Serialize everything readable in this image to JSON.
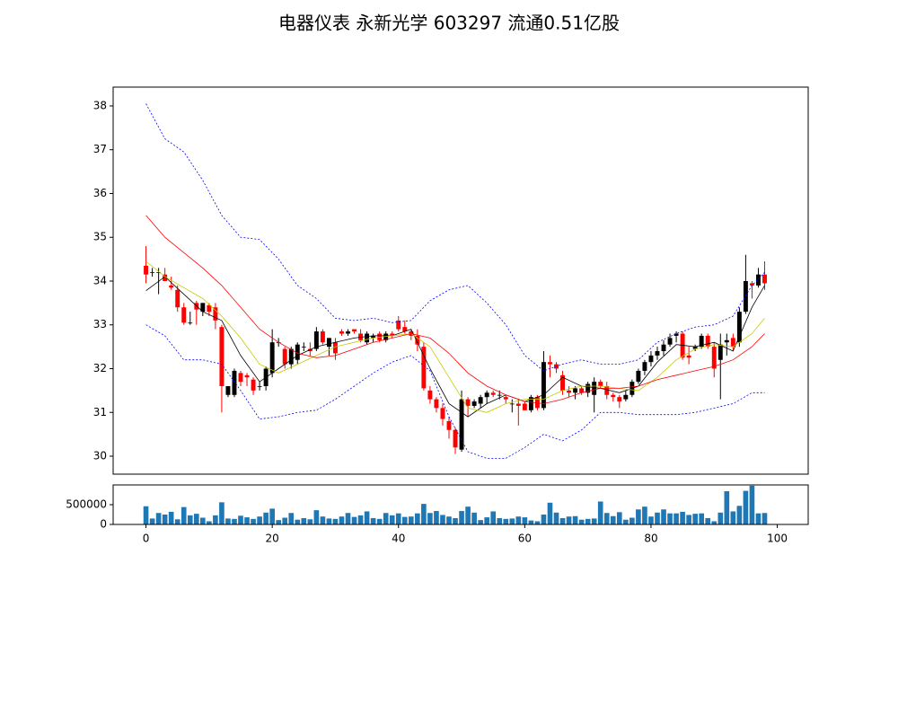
{
  "chart_data": [
    {
      "type": "candlestick",
      "title": "电器仪表 永新光学 603297 流通0.51亿股",
      "up_color": "#000000",
      "down_color": "#ff0000",
      "x": [
        0,
        1,
        2,
        3,
        4,
        5,
        6,
        7,
        8,
        9,
        10,
        11,
        12,
        13,
        14,
        15,
        16,
        17,
        18,
        19,
        20,
        21,
        22,
        23,
        24,
        25,
        26,
        27,
        28,
        29,
        30,
        31,
        32,
        33,
        34,
        35,
        36,
        37,
        38,
        39,
        40,
        41,
        42,
        43,
        44,
        45,
        46,
        47,
        48,
        49,
        50,
        51,
        52,
        53,
        54,
        55,
        56,
        57,
        58,
        59,
        60,
        61,
        62,
        63,
        64,
        65,
        66,
        67,
        68,
        69,
        70,
        71,
        72,
        73,
        74,
        75,
        76,
        77,
        78,
        79,
        80,
        81,
        82,
        83,
        84,
        85,
        86,
        87,
        88,
        89,
        90,
        91,
        92,
        93,
        94,
        95,
        96,
        97,
        98
      ],
      "open": [
        34.35,
        34.2,
        34.2,
        34.15,
        33.9,
        33.8,
        33.4,
        33.05,
        33.5,
        33.3,
        33.45,
        33.4,
        32.95,
        31.4,
        31.4,
        31.9,
        31.85,
        31.75,
        31.6,
        31.6,
        31.9,
        32.6,
        32.45,
        32.1,
        32.2,
        32.5,
        32.45,
        32.45,
        32.85,
        32.5,
        32.6,
        32.85,
        32.8,
        32.9,
        32.8,
        32.6,
        32.7,
        32.8,
        32.65,
        32.8,
        33.1,
        32.95,
        32.85,
        32.75,
        32.5,
        31.5,
        31.3,
        31.1,
        30.8,
        30.6,
        30.15,
        31.3,
        31.15,
        31.2,
        31.35,
        31.45,
        31.4,
        31.35,
        31.2,
        31.2,
        31.2,
        31.05,
        31.35,
        31.1,
        32.15,
        32.1,
        31.85,
        31.5,
        31.45,
        31.55,
        31.45,
        31.4,
        31.7,
        31.6,
        31.4,
        31.35,
        31.3,
        31.4,
        31.7,
        31.95,
        32.15,
        32.3,
        32.4,
        32.55,
        32.75,
        32.8,
        32.3,
        32.45,
        32.5,
        32.75,
        32.5,
        32.2,
        32.6,
        32.7,
        32.6,
        33.3,
        33.95,
        33.9,
        34.15
      ],
      "high": [
        34.8,
        34.3,
        34.3,
        34.3,
        34.1,
        33.9,
        33.5,
        33.3,
        33.55,
        33.5,
        33.5,
        33.5,
        33.0,
        31.6,
        32.0,
        31.95,
        31.9,
        31.8,
        31.7,
        32.05,
        32.9,
        32.7,
        32.5,
        32.5,
        32.6,
        32.6,
        32.6,
        32.95,
        32.9,
        32.7,
        32.7,
        32.9,
        32.9,
        32.9,
        32.9,
        32.85,
        32.8,
        32.85,
        32.85,
        32.85,
        33.2,
        33.1,
        32.9,
        32.9,
        32.6,
        31.6,
        31.35,
        31.2,
        30.9,
        30.65,
        31.5,
        31.35,
        31.3,
        31.4,
        31.5,
        31.5,
        31.5,
        31.4,
        31.3,
        31.3,
        31.25,
        31.4,
        31.4,
        32.4,
        32.3,
        32.15,
        31.95,
        31.6,
        31.6,
        31.6,
        31.7,
        31.8,
        31.75,
        31.7,
        31.45,
        31.4,
        31.5,
        31.75,
        32.0,
        32.2,
        32.4,
        32.5,
        32.65,
        32.8,
        32.85,
        32.85,
        32.5,
        32.55,
        32.8,
        32.8,
        32.6,
        32.8,
        32.8,
        32.8,
        33.4,
        34.6,
        34.0,
        34.3,
        34.45
      ],
      "low": [
        33.95,
        34.1,
        33.7,
        34.0,
        33.8,
        33.3,
        33.0,
        33.0,
        33.0,
        33.2,
        33.2,
        32.9,
        31.0,
        31.35,
        31.35,
        31.6,
        31.6,
        31.4,
        31.5,
        31.5,
        31.8,
        32.5,
        32.0,
        32.0,
        32.1,
        32.4,
        32.3,
        32.4,
        32.55,
        32.3,
        32.2,
        32.75,
        32.75,
        32.8,
        32.6,
        32.55,
        32.6,
        32.6,
        32.6,
        32.7,
        32.85,
        32.8,
        32.65,
        32.4,
        31.5,
        31.2,
        31.0,
        30.7,
        30.4,
        30.05,
        30.1,
        30.9,
        31.1,
        31.1,
        31.2,
        31.35,
        31.3,
        31.2,
        31.0,
        30.7,
        31.05,
        31.0,
        31.05,
        31.05,
        31.8,
        31.9,
        31.4,
        31.35,
        31.3,
        31.4,
        31.35,
        31.0,
        31.55,
        31.3,
        31.25,
        31.1,
        31.25,
        31.35,
        31.65,
        31.85,
        32.05,
        32.2,
        32.3,
        32.5,
        32.6,
        32.2,
        32.1,
        32.4,
        32.45,
        32.45,
        31.8,
        31.3,
        32.3,
        32.4,
        32.5,
        33.25,
        33.6,
        33.85,
        33.8
      ],
      "close": [
        34.15,
        34.2,
        34.2,
        34.0,
        33.85,
        33.4,
        33.05,
        33.05,
        33.35,
        33.5,
        33.3,
        33.1,
        31.6,
        31.6,
        31.95,
        31.7,
        31.8,
        31.5,
        31.6,
        32.0,
        32.6,
        32.6,
        32.1,
        32.45,
        32.55,
        32.5,
        32.4,
        32.85,
        32.6,
        32.7,
        32.35,
        32.8,
        32.85,
        32.85,
        32.65,
        32.8,
        32.75,
        32.65,
        32.8,
        32.75,
        32.9,
        32.85,
        32.75,
        32.55,
        31.55,
        31.3,
        31.1,
        30.85,
        30.6,
        30.2,
        31.3,
        31.15,
        31.25,
        31.35,
        31.45,
        31.4,
        31.4,
        31.3,
        31.2,
        31.15,
        31.05,
        31.35,
        31.1,
        32.15,
        32.1,
        32.0,
        31.5,
        31.45,
        31.55,
        31.45,
        31.65,
        31.7,
        31.6,
        31.4,
        31.35,
        31.25,
        31.4,
        31.7,
        31.95,
        32.15,
        32.3,
        32.4,
        32.55,
        32.7,
        32.8,
        32.25,
        32.25,
        32.5,
        32.75,
        32.5,
        32.0,
        32.55,
        32.65,
        32.5,
        33.3,
        34.0,
        33.9,
        34.15,
        33.95
      ],
      "lines": [
        {
          "color": "#000000",
          "dashed": false,
          "x": [
            0,
            3,
            6,
            9,
            12,
            15,
            18,
            21,
            24,
            27,
            30,
            33,
            36,
            39,
            42,
            45,
            48,
            51,
            54,
            57,
            60,
            63,
            66,
            69,
            72,
            75,
            78,
            81,
            84,
            87,
            90,
            93,
            96,
            98
          ],
          "values": [
            33.78,
            34.1,
            33.7,
            33.3,
            33.1,
            32.3,
            31.7,
            32.0,
            32.3,
            32.5,
            32.6,
            32.7,
            32.75,
            32.75,
            32.9,
            32.0,
            31.2,
            30.9,
            31.2,
            31.4,
            31.25,
            31.4,
            31.8,
            31.6,
            31.55,
            31.45,
            31.6,
            32.15,
            32.55,
            32.5,
            32.6,
            32.4,
            33.4,
            33.9
          ]
        },
        {
          "color": "#c8c800",
          "dashed": false,
          "x": [
            0,
            3,
            6,
            9,
            12,
            15,
            18,
            21,
            24,
            27,
            30,
            33,
            36,
            39,
            42,
            45,
            48,
            51,
            54,
            57,
            60,
            63,
            66,
            69,
            72,
            75,
            78,
            81,
            84,
            87,
            90,
            93,
            96,
            98
          ],
          "values": [
            34.45,
            34.1,
            33.85,
            33.6,
            33.2,
            32.7,
            32.1,
            31.9,
            32.1,
            32.3,
            32.5,
            32.6,
            32.7,
            32.75,
            32.8,
            32.5,
            31.8,
            31.1,
            31.0,
            31.2,
            31.3,
            31.3,
            31.5,
            31.6,
            31.6,
            31.55,
            31.5,
            31.8,
            32.2,
            32.45,
            32.55,
            32.5,
            32.8,
            33.15
          ]
        },
        {
          "color": "#ff0000",
          "dashed": false,
          "x": [
            0,
            3,
            6,
            9,
            12,
            15,
            18,
            21,
            24,
            27,
            30,
            33,
            36,
            39,
            42,
            45,
            48,
            51,
            54,
            57,
            60,
            63,
            66,
            69,
            72,
            75,
            78,
            81,
            84,
            87,
            90,
            93,
            96,
            98
          ],
          "values": [
            35.5,
            35.0,
            34.65,
            34.3,
            33.9,
            33.4,
            32.9,
            32.6,
            32.35,
            32.25,
            32.3,
            32.45,
            32.6,
            32.7,
            32.8,
            32.7,
            32.35,
            31.9,
            31.6,
            31.4,
            31.25,
            31.2,
            31.3,
            31.45,
            31.55,
            31.55,
            31.6,
            31.75,
            31.85,
            31.95,
            32.05,
            32.2,
            32.5,
            32.8
          ]
        },
        {
          "color": "#0000ff",
          "dashed": true,
          "x": [
            0,
            3,
            6,
            9,
            12,
            15,
            18,
            21,
            24,
            27,
            30,
            33,
            36,
            39,
            42,
            45,
            48,
            51,
            54,
            57,
            60,
            63,
            66,
            69,
            72,
            75,
            78,
            81,
            84,
            87,
            90,
            93,
            96,
            98
          ],
          "values": [
            38.05,
            37.25,
            36.95,
            36.3,
            35.5,
            35.0,
            34.95,
            34.5,
            33.9,
            33.6,
            33.15,
            33.1,
            33.15,
            33.05,
            33.1,
            33.55,
            33.8,
            33.9,
            33.5,
            33.0,
            32.3,
            31.95,
            32.1,
            32.2,
            32.1,
            32.1,
            32.2,
            32.6,
            32.8,
            32.95,
            33.0,
            33.2,
            33.9,
            34.2
          ]
        },
        {
          "color": "#0000ff",
          "dashed": true,
          "x": [
            0,
            3,
            6,
            9,
            12,
            15,
            18,
            21,
            24,
            27,
            30,
            33,
            36,
            39,
            42,
            45,
            48,
            51,
            54,
            57,
            60,
            63,
            66,
            69,
            72,
            75,
            78,
            81,
            84,
            87,
            90,
            93,
            96,
            98
          ],
          "values": [
            33.0,
            32.75,
            32.2,
            32.2,
            32.1,
            31.5,
            30.85,
            30.9,
            31.0,
            31.05,
            31.3,
            31.6,
            31.9,
            32.15,
            32.3,
            31.95,
            30.9,
            30.1,
            29.95,
            29.95,
            30.2,
            30.5,
            30.35,
            30.6,
            31.0,
            31.0,
            30.95,
            30.95,
            30.95,
            31.0,
            31.1,
            31.2,
            31.45,
            31.45
          ]
        }
      ],
      "xlim": [
        -5.2,
        104.9
      ],
      "ylim": [
        29.59,
        38.43
      ],
      "yticks": [
        30,
        31,
        32,
        33,
        34,
        35,
        36,
        37,
        38
      ]
    },
    {
      "type": "bar",
      "color": "#1f77b4",
      "x": [
        0,
        1,
        2,
        3,
        4,
        5,
        6,
        7,
        8,
        9,
        10,
        11,
        12,
        13,
        14,
        15,
        16,
        17,
        18,
        19,
        20,
        21,
        22,
        23,
        24,
        25,
        26,
        27,
        28,
        29,
        30,
        31,
        32,
        33,
        34,
        35,
        36,
        37,
        38,
        39,
        40,
        41,
        42,
        43,
        44,
        45,
        46,
        47,
        48,
        49,
        50,
        51,
        52,
        53,
        54,
        55,
        56,
        57,
        58,
        59,
        60,
        61,
        62,
        63,
        64,
        65,
        66,
        67,
        68,
        69,
        70,
        71,
        72,
        73,
        74,
        75,
        76,
        77,
        78,
        79,
        80,
        81,
        82,
        83,
        84,
        85,
        86,
        87,
        88,
        89,
        90,
        91,
        92,
        93,
        94,
        95,
        96,
        97,
        98
      ],
      "values": [
        460000,
        150000,
        290000,
        250000,
        320000,
        130000,
        440000,
        230000,
        270000,
        170000,
        80000,
        230000,
        560000,
        150000,
        140000,
        220000,
        180000,
        140000,
        200000,
        300000,
        400000,
        110000,
        170000,
        290000,
        120000,
        160000,
        130000,
        360000,
        200000,
        150000,
        140000,
        200000,
        290000,
        190000,
        230000,
        330000,
        160000,
        140000,
        290000,
        230000,
        280000,
        190000,
        200000,
        280000,
        520000,
        290000,
        340000,
        240000,
        200000,
        160000,
        340000,
        450000,
        300000,
        110000,
        180000,
        330000,
        160000,
        140000,
        150000,
        200000,
        180000,
        100000,
        80000,
        250000,
        550000,
        300000,
        160000,
        200000,
        210000,
        120000,
        140000,
        150000,
        580000,
        290000,
        210000,
        310000,
        120000,
        170000,
        380000,
        450000,
        200000,
        300000,
        380000,
        280000,
        280000,
        320000,
        240000,
        270000,
        280000,
        160000,
        80000,
        300000,
        840000,
        330000,
        470000,
        850000,
        980000,
        280000,
        290000
      ],
      "xlim": [
        -5.2,
        104.9
      ],
      "ylim": [
        0,
        1000000
      ],
      "yticks": [
        0,
        500000
      ],
      "xticks": [
        0,
        20,
        40,
        60,
        80,
        100
      ]
    }
  ]
}
